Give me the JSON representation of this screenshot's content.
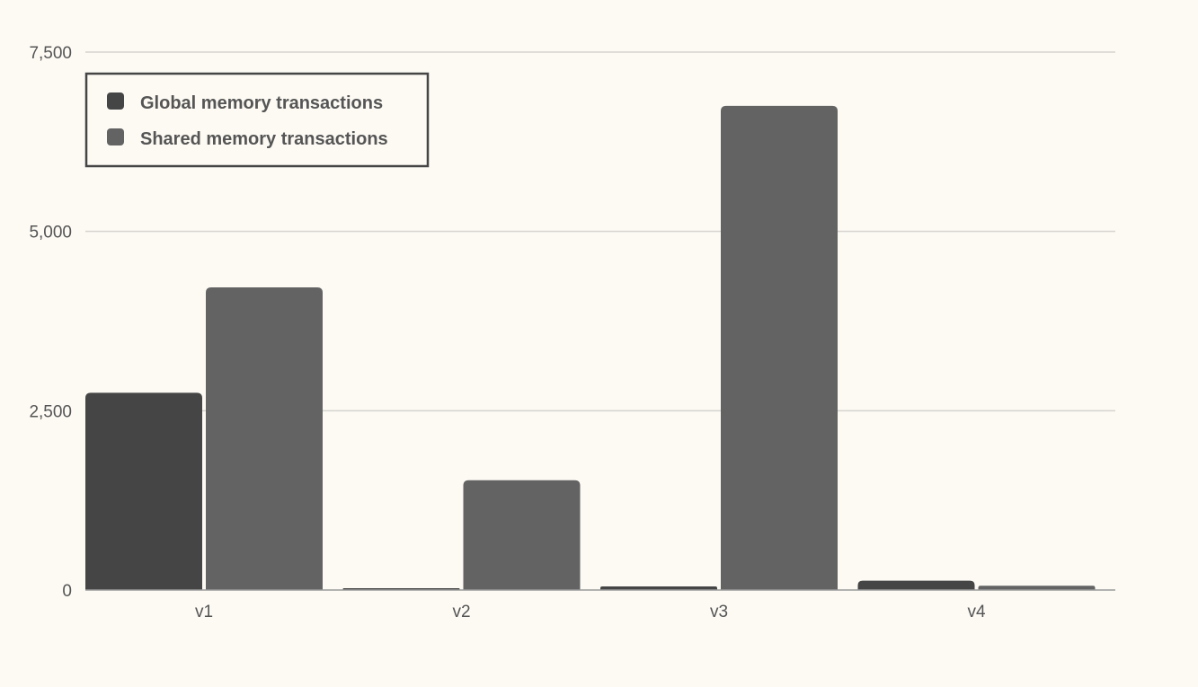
{
  "chart_data": {
    "type": "bar",
    "title": "",
    "xlabel": "",
    "ylabel": "",
    "categories": [
      "v1",
      "v2",
      "v3",
      "v4"
    ],
    "series": [
      {
        "name": "Global memory transactions",
        "color": "#454545",
        "values": [
          2750,
          20,
          50,
          130
        ]
      },
      {
        "name": "Shared memory transactions",
        "color": "#636363",
        "values": [
          4220,
          1530,
          6750,
          60
        ]
      }
    ],
    "ylim": [
      0,
      7500
    ],
    "yticks": [
      0,
      2500,
      5000,
      7500
    ],
    "ytick_labels": [
      "0",
      "2,500",
      "5,000",
      "7,500"
    ],
    "grid": true,
    "legend_position": "top-left"
  }
}
